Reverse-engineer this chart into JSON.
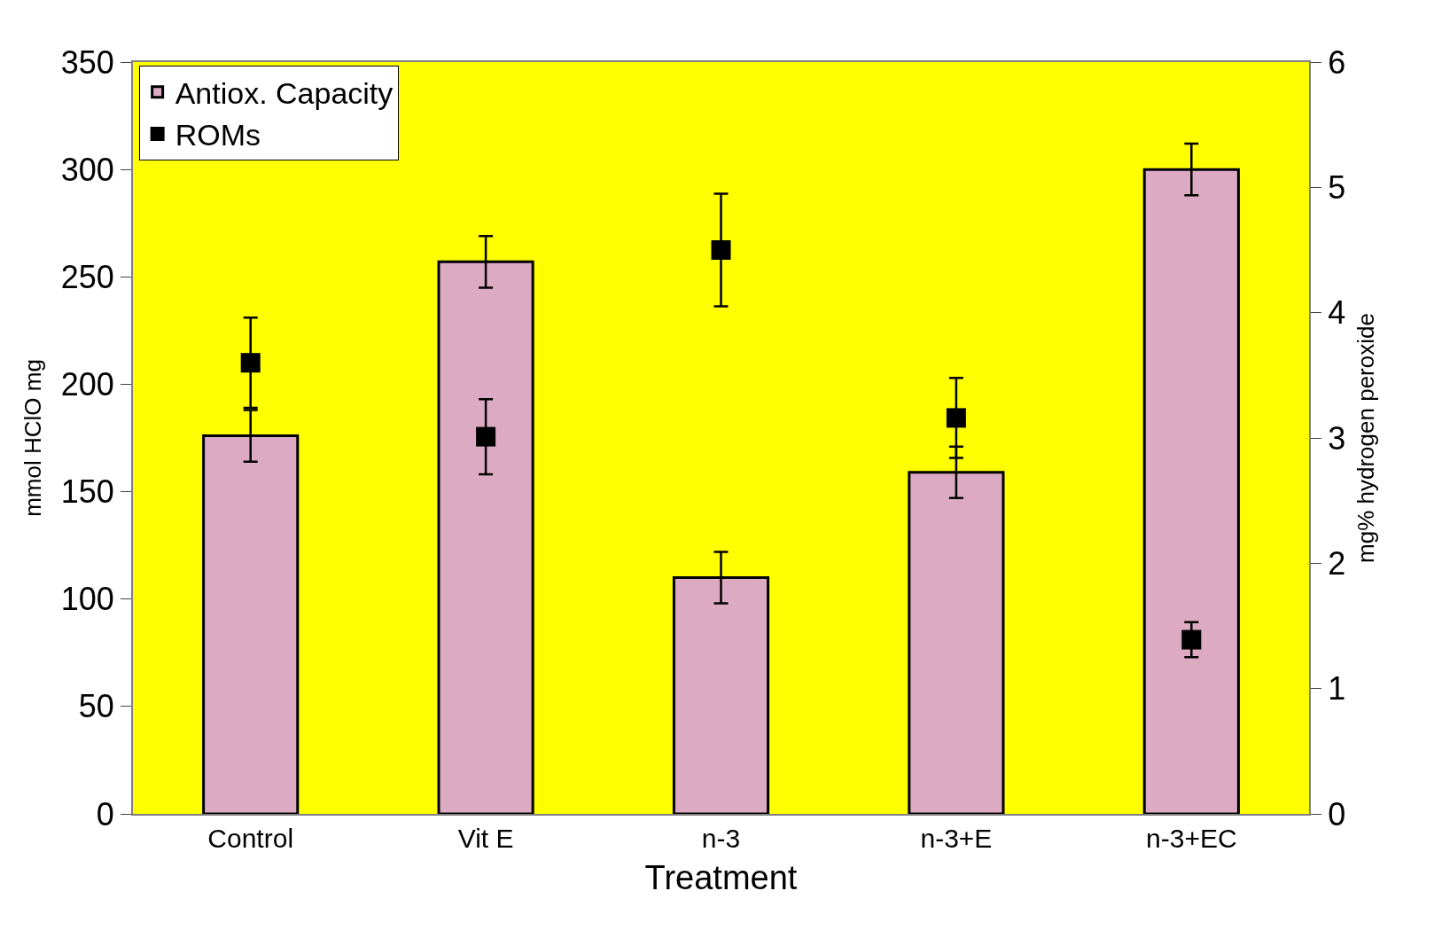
{
  "chart_data": {
    "type": "bar",
    "xlabel": "Treatment",
    "ylabel": "mmol HClO mg",
    "y2label": "mg% hydrogen peroxide",
    "categories": [
      "Control",
      "Vit E",
      "n-3",
      "n-3+E",
      "n-3+EC"
    ],
    "series": [
      {
        "name": "Antiox. Capacity",
        "color": "#dcaac3",
        "values": [
          176,
          257,
          110,
          159,
          300
        ],
        "errors": [
          12,
          12,
          12,
          12,
          12
        ]
      },
      {
        "name": "ROMs",
        "type": "scatter",
        "axis": "y2",
        "color": "#000000",
        "marker": "square",
        "values": [
          3.6,
          3.01,
          4.5,
          3.16,
          1.39
        ],
        "errors": [
          0.36,
          0.3,
          0.45,
          0.32,
          0.14
        ]
      }
    ],
    "ylim": [
      0,
      350
    ],
    "yticks": [
      0,
      50,
      100,
      150,
      200,
      250,
      300,
      350
    ],
    "y2lim": [
      0,
      6
    ],
    "y2ticks": [
      0,
      1,
      2,
      3,
      4,
      5,
      6
    ],
    "grid": false,
    "legend": "top left"
  }
}
